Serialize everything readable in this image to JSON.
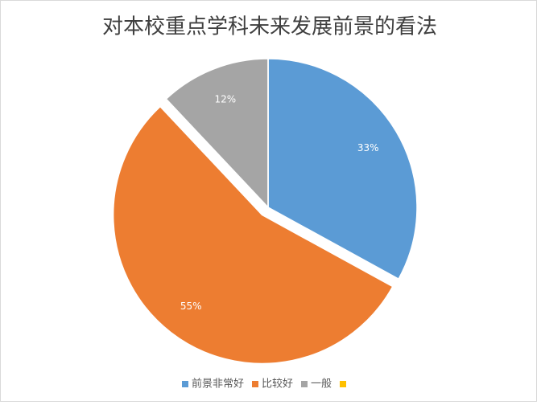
{
  "chart_data": {
    "type": "pie",
    "title": "对本校重点学科未来发展前景的看法",
    "categories": [
      "前景非常好",
      "比较好",
      "一般",
      null
    ],
    "values": [
      33,
      55,
      12,
      0
    ],
    "value_labels": [
      "33%",
      "55%",
      "12%",
      null
    ],
    "colors": [
      "#5b9bd5",
      "#ed7d31",
      "#a5a5a5",
      "#ffc000"
    ],
    "exploded": [
      false,
      true,
      false,
      false
    ],
    "legend": "bottom"
  }
}
